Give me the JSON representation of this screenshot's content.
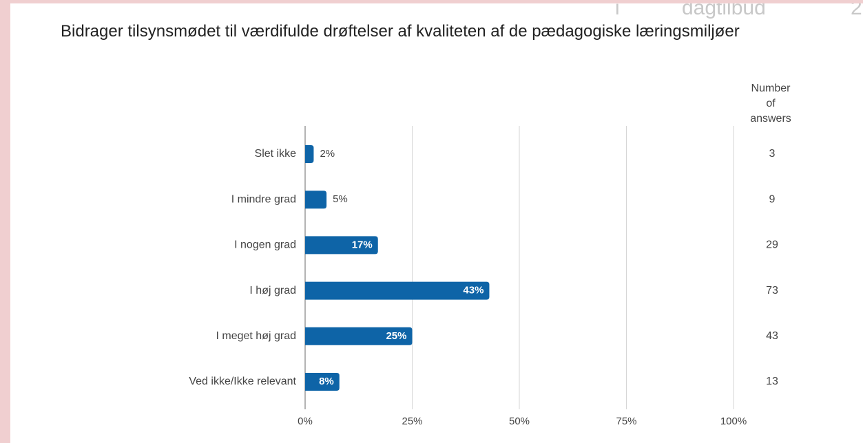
{
  "header_fragments": [
    "i",
    "dagtilbud",
    "2"
  ],
  "chart_data": {
    "type": "hbar",
    "title": "Bidrager tilsynsmødet til værdifulde drøftelser af kvaliteten af de pædagogiske læringsmiljøer",
    "categories": [
      "Slet ikke",
      "I mindre grad",
      "I nogen grad",
      "I høj grad",
      "I meget høj grad",
      "Ved ikke/Ikke relevant"
    ],
    "values": [
      2,
      5,
      17,
      43,
      25,
      8
    ],
    "value_labels": [
      "2%",
      "5%",
      "17%",
      "43%",
      "25%",
      "8%"
    ],
    "color": "#0e64a7",
    "xlim": [
      0,
      100
    ],
    "xticks": [
      {
        "value": 0,
        "label": "0%"
      },
      {
        "value": 25,
        "label": "25%"
      },
      {
        "value": 50,
        "label": "50%"
      },
      {
        "value": 75,
        "label": "75%"
      },
      {
        "value": 100,
        "label": "100%"
      }
    ],
    "grid": true,
    "count_header": "Number of answers",
    "counts": [
      3,
      9,
      29,
      73,
      43,
      13
    ]
  }
}
